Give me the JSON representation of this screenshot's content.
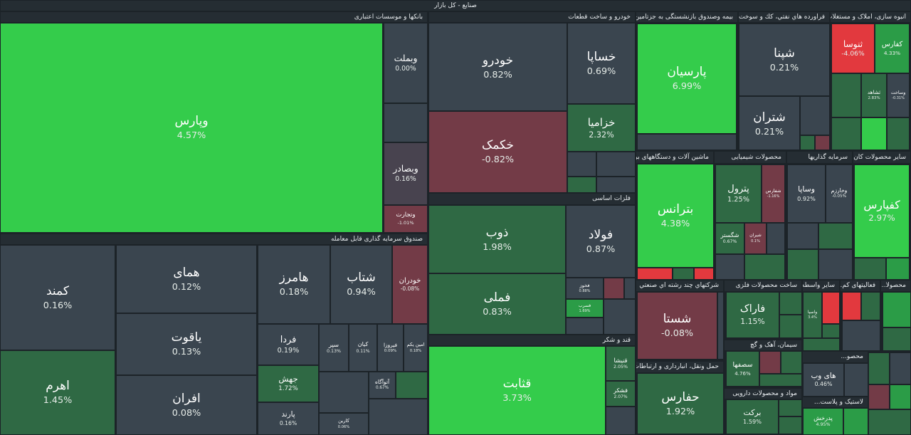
{
  "header": {
    "title": "صنایع - کل بازار"
  },
  "sectors": [
    {
      "title": "بانکها و موسسات اعتباری",
      "tiles": [
        {
          "name": "وپارس",
          "change": "4.57%"
        },
        {
          "name": "وبملت",
          "change": "0.00%"
        },
        {
          "name": "وبصادر",
          "change": "0.16%"
        },
        {
          "name": "وتجارت",
          "change": "-1.01%"
        }
      ]
    },
    {
      "title": "صندوق سرمایه گذاری قابل معامله",
      "tiles": [
        {
          "name": "کمند",
          "change": "0.16%"
        },
        {
          "name": "اهرم",
          "change": "1.45%"
        },
        {
          "name": "همای",
          "change": "0.12%"
        },
        {
          "name": "یاقوت",
          "change": "0.13%"
        },
        {
          "name": "افران",
          "change": "0.08%"
        },
        {
          "name": "هامرز",
          "change": "0.18%"
        },
        {
          "name": "شتاب",
          "change": "0.94%"
        },
        {
          "name": "خودران",
          "change": "-0.08%"
        },
        {
          "name": "فردا",
          "change": "0.19%"
        },
        {
          "name": "جهش",
          "change": "1.72%"
        },
        {
          "name": "پارند",
          "change": "0.16%"
        },
        {
          "name": "سپر",
          "change": "0.13%"
        },
        {
          "name": "کیان",
          "change": "0.11%"
        },
        {
          "name": "فیروزا",
          "change": "0.09%"
        },
        {
          "name": "امین یکم",
          "change": "0.18%"
        },
        {
          "name": "آتوآگاه",
          "change": "0.67%"
        },
        {
          "name": "کارین",
          "change": "0.06%"
        }
      ]
    },
    {
      "title": "خودرو و ساخت قطعات",
      "tiles": [
        {
          "name": "خودرو",
          "change": "0.82%"
        },
        {
          "name": "خکمک",
          "change": "-0.82%"
        },
        {
          "name": "خساپا",
          "change": "0.69%"
        },
        {
          "name": "خزامیا",
          "change": "2.32%"
        }
      ]
    },
    {
      "title": "فلزات اساسی",
      "tiles": [
        {
          "name": "ذوب",
          "change": "1.98%"
        },
        {
          "name": "فملی",
          "change": "0.83%"
        },
        {
          "name": "فولاد",
          "change": "0.87%"
        },
        {
          "name": "فخوز",
          "change": "0.88%"
        },
        {
          "name": "فسرب",
          "change": "1.69%"
        }
      ]
    },
    {
      "title": "قند و شکر",
      "tiles": [
        {
          "name": "قثابت",
          "change": "3.73%"
        },
        {
          "name": "قنیشا",
          "change": "2.05%"
        },
        {
          "name": "قشکر",
          "change": "2.07%"
        }
      ]
    },
    {
      "title": "بیمه وصندوق بازنشستگی به جزتامین ...",
      "tiles": [
        {
          "name": "پارسیان",
          "change": "6.99%"
        }
      ]
    },
    {
      "title": "فراورده هاي نفتي، كك و سوخت ه...",
      "tiles": [
        {
          "name": "شپنا",
          "change": "0.21%"
        },
        {
          "name": "شتران",
          "change": "0.21%"
        }
      ]
    },
    {
      "title": "انبوه سازی، املاک و مستغلات",
      "tiles": [
        {
          "name": "ثنوسا",
          "change": "-4.06%"
        },
        {
          "name": "کفارس",
          "change": "4.33%"
        },
        {
          "name": "ثشاهد",
          "change": "2.83%"
        },
        {
          "name": "وساخت",
          "change": "-0.31%"
        }
      ]
    },
    {
      "title": "ماشین آلات و دستگاههای بر...",
      "tiles": [
        {
          "name": "بترانس",
          "change": "4.38%"
        }
      ]
    },
    {
      "title": "محصولات شیمیایی",
      "tiles": [
        {
          "name": "پترول",
          "change": "1.25%"
        },
        {
          "name": "شفارس",
          "change": "-1.16%"
        },
        {
          "name": "شگستر",
          "change": "0.67%"
        },
        {
          "name": "شیران",
          "change": "0.1%"
        }
      ]
    },
    {
      "title": "سرمایه گذاریها",
      "tiles": [
        {
          "name": "وساپا",
          "change": "0.92%"
        },
        {
          "name": "وخارزم",
          "change": "-0.05%"
        }
      ]
    },
    {
      "title": "سایر محصولات کان...",
      "tiles": [
        {
          "name": "کفپارس",
          "change": "2.97%"
        }
      ]
    },
    {
      "title": "شرکتهاي چند رشته اي صنعتي",
      "tiles": [
        {
          "name": "شستا",
          "change": "-0.08%"
        }
      ]
    },
    {
      "title": "حمل ونقل، انبارداری و ارتباطات",
      "tiles": [
        {
          "name": "حفارس",
          "change": "1.92%"
        }
      ]
    },
    {
      "title": "ساخت محصولات فلزی",
      "tiles": [
        {
          "name": "فاراک",
          "change": "1.15%"
        }
      ]
    },
    {
      "title": "سیمان، آهک و گچ",
      "tiles": [
        {
          "name": "سصفها",
          "change": "4.76%"
        }
      ]
    },
    {
      "title": "مواد و محصولات دارویی",
      "tiles": [
        {
          "name": "برکت",
          "change": "1.59%"
        }
      ]
    },
    {
      "title": "سایر واسطه گ...",
      "tiles": [
        {
          "name": "واسپا",
          "change": "3.4%"
        }
      ]
    },
    {
      "title": "فعالیتهای کم...",
      "tiles": []
    },
    {
      "title": "محصولا...",
      "tiles": []
    },
    {
      "title": "محصو...",
      "tiles": [
        {
          "name": "های وب",
          "change": "0.46%"
        }
      ]
    },
    {
      "title": "لاستیک و پلاست...",
      "tiles": [
        {
          "name": "پدرخش",
          "change": "4.95%"
        }
      ]
    }
  ]
}
